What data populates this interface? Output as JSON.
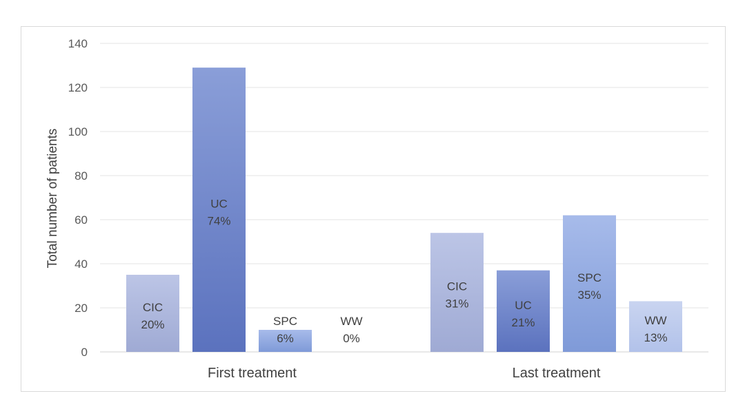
{
  "chart_data": {
    "type": "bar",
    "ylabel": "Total number of patients",
    "ylim": [
      0,
      140
    ],
    "yticks": [
      0,
      20,
      40,
      60,
      80,
      100,
      120,
      140
    ],
    "grid": true,
    "groups": [
      {
        "label": "First treatment",
        "bars": [
          {
            "name": "CIC",
            "value": 35,
            "pct": "20%"
          },
          {
            "name": "UC",
            "value": 129,
            "pct": "74%"
          },
          {
            "name": "SPC",
            "value": 10,
            "pct": "6%"
          },
          {
            "name": "WW",
            "value": 0,
            "pct": "0%"
          }
        ]
      },
      {
        "label": "Last treatment",
        "bars": [
          {
            "name": "CIC",
            "value": 54,
            "pct": "31%"
          },
          {
            "name": "UC",
            "value": 37,
            "pct": "21%"
          },
          {
            "name": "SPC",
            "value": 62,
            "pct": "35%"
          },
          {
            "name": "WW",
            "value": 23,
            "pct": "13%"
          }
        ]
      }
    ],
    "colors": {
      "CIC": [
        "#bcc5e6",
        "#9faad4"
      ],
      "UC": [
        "#8a9ed8",
        "#5b72be"
      ],
      "SPC": [
        "#a7bbea",
        "#7f9ad8"
      ],
      "WW": [
        "#c9d4f0",
        "#b2c2ea"
      ]
    }
  }
}
